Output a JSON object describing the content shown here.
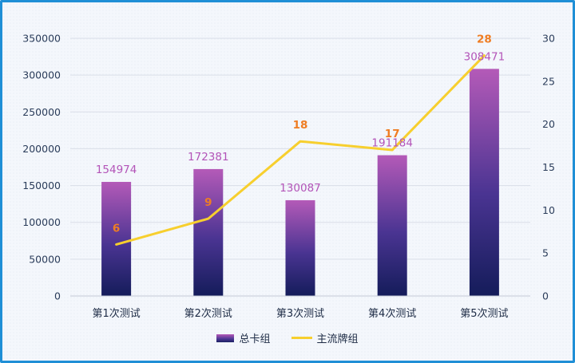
{
  "chart_data": {
    "type": "bar",
    "categories": [
      "第1次测试",
      "第2次测试",
      "第3次测试",
      "第4次测试",
      "第5次测试"
    ],
    "series": [
      {
        "name": "总卡组",
        "type": "bar",
        "axis": "left",
        "values": [
          154974,
          172381,
          130087,
          191184,
          308471
        ]
      },
      {
        "name": "主流牌组",
        "type": "line",
        "axis": "right",
        "values": [
          6,
          9,
          18,
          17,
          28
        ]
      }
    ],
    "y_left": {
      "ylim": [
        0,
        350000
      ],
      "ticks": [
        "0",
        "50000",
        "100000",
        "150000",
        "200000",
        "250000",
        "300000",
        "350000"
      ]
    },
    "y_right": {
      "ylim": [
        0,
        30
      ],
      "ticks": [
        "0",
        "5",
        "10",
        "15",
        "20",
        "25",
        "30"
      ]
    },
    "grid": true,
    "legend_position": "bottom",
    "colors": {
      "bar_top": "#b45ab8",
      "bar_mid": "#4a3492",
      "bar_bottom": "#1a2263",
      "line": "#f7cf2e",
      "bar_label": "#b354b8",
      "line_label": "#ef7d23",
      "border": "#1f8fd6"
    }
  }
}
